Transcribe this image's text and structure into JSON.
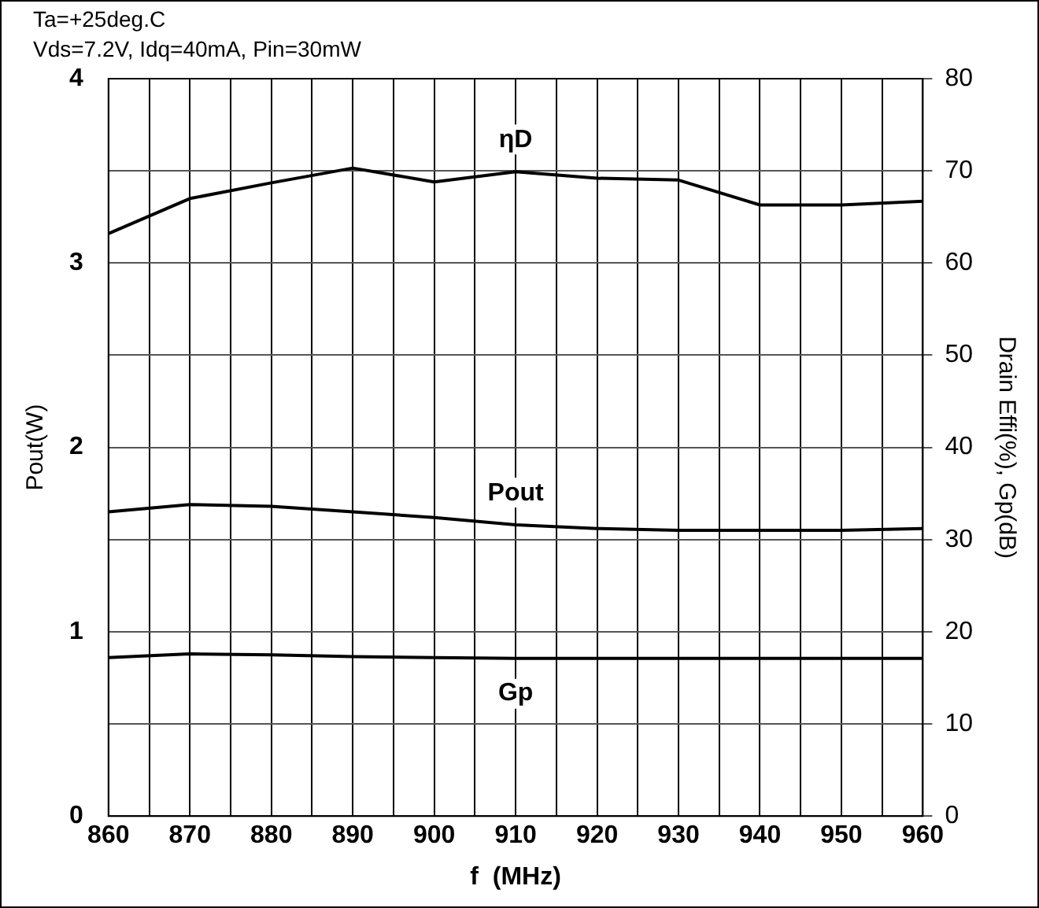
{
  "chart_data": {
    "type": "line",
    "title": "Ta=+25deg.C",
    "subtitle": "Vds=7.2V, Idq=40mA, Pin=30mW",
    "xlabel": "f  (MHz)",
    "ylabel": "Pout(W)",
    "y2label": "Drain Effi(%), Gp(dB)",
    "x": [
      860,
      870,
      880,
      890,
      900,
      910,
      920,
      930,
      940,
      950,
      960
    ],
    "series": [
      {
        "name": "ηD",
        "color": "#000000",
        "axis": "y2",
        "values": [
          63.2,
          67.0,
          68.7,
          70.3,
          68.8,
          69.9,
          69.2,
          69.0,
          66.3,
          66.3,
          66.7
        ]
      },
      {
        "name": "Pout",
        "color": "#000000",
        "values": [
          1.65,
          1.69,
          1.68,
          1.65,
          1.62,
          1.58,
          1.56,
          1.55,
          1.55,
          1.55,
          1.56
        ]
      },
      {
        "name": "Gp",
        "color": "#000000",
        "axis": "y2",
        "values": [
          17.2,
          17.6,
          17.5,
          17.3,
          17.2,
          17.1,
          17.1,
          17.1,
          17.1,
          17.1,
          17.1
        ]
      }
    ],
    "xlim": [
      860,
      960
    ],
    "xticks": [
      860,
      {
        "value": 865,
        "label": null
      },
      870,
      {
        "value": 875,
        "label": null
      },
      880,
      {
        "value": 885,
        "label": null
      },
      890,
      {
        "value": 895,
        "label": null
      },
      900,
      {
        "value": 905,
        "label": null
      },
      910,
      {
        "value": 915,
        "label": null
      },
      920,
      {
        "value": 925,
        "label": null
      },
      930,
      {
        "value": 935,
        "label": null
      },
      940,
      {
        "value": 945,
        "label": null
      },
      950,
      {
        "value": 955,
        "label": null
      },
      960
    ],
    "ylim": [
      0,
      4
    ],
    "yticks": [
      0,
      1,
      2,
      3,
      4
    ],
    "y2lim": [
      0,
      80
    ],
    "y2ticks": [
      0,
      10,
      20,
      30,
      40,
      50,
      60,
      70,
      80
    ],
    "grid": true,
    "legend": false,
    "marker": "none",
    "line_style": "solid"
  }
}
